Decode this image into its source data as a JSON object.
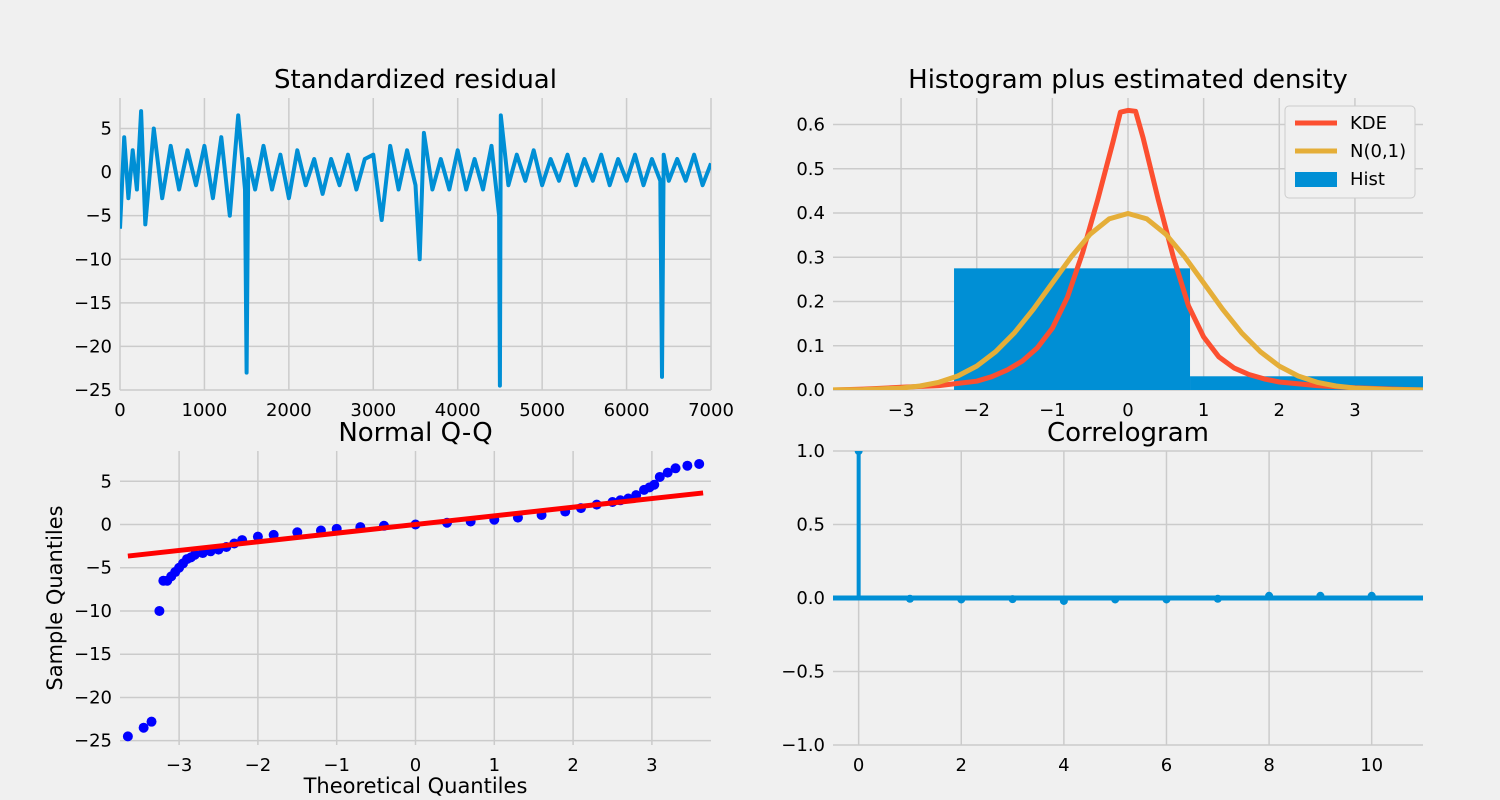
{
  "chart_data": [
    {
      "type": "line",
      "title": "Standardized residual",
      "xlabel": "",
      "ylabel": "",
      "xlim": [
        0,
        7000
      ],
      "ylim": [
        -25,
        8.5
      ],
      "xticks": [
        0,
        1000,
        2000,
        3000,
        4000,
        5000,
        6000,
        7000
      ],
      "xtick_labels": [
        "0",
        "1000",
        "2000",
        "3000",
        "4000",
        "5000",
        "6000",
        "7000"
      ],
      "yticks": [
        5,
        0,
        -5,
        -10,
        -15,
        -20,
        -25
      ],
      "ytick_labels": [
        "5",
        "0",
        "−5",
        "−10",
        "−15",
        "−20",
        "−25"
      ],
      "grid": true,
      "color": "#008fd5",
      "series": [
        {
          "x": [
            0,
            50,
            100,
            150,
            200,
            250,
            300,
            400,
            500,
            600,
            700,
            800,
            900,
            1000,
            1100,
            1200,
            1300,
            1400,
            1480,
            1500,
            1520,
            1600,
            1700,
            1800,
            1900,
            2000,
            2100,
            2200,
            2300,
            2400,
            2500,
            2600,
            2700,
            2800,
            2900,
            3000,
            3100,
            3200,
            3300,
            3400,
            3500,
            3550,
            3600,
            3700,
            3800,
            3900,
            4000,
            4100,
            4200,
            4300,
            4400,
            4490,
            4500,
            4510,
            4600,
            4700,
            4800,
            4900,
            5000,
            5100,
            5200,
            5300,
            5400,
            5500,
            5600,
            5700,
            5800,
            5900,
            6000,
            6100,
            6200,
            6300,
            6400,
            6420,
            6440,
            6500,
            6600,
            6700,
            6800,
            6900,
            7000
          ],
          "values": [
            -6.5,
            4,
            -3,
            2.5,
            -2,
            7,
            -6,
            5,
            -3,
            3,
            -2,
            2.5,
            -1.5,
            3,
            -3,
            4,
            -5,
            6.5,
            -2,
            -23,
            1.5,
            -2,
            3,
            -2,
            2,
            -3,
            2.5,
            -1.5,
            1.5,
            -2.5,
            1.5,
            -1.5,
            2,
            -2,
            1.5,
            2,
            -5.5,
            3,
            -2,
            2.5,
            -1.5,
            -10,
            4.5,
            -2,
            1.5,
            -2,
            2.5,
            -2,
            1.5,
            -2,
            3,
            -5,
            -24.5,
            6.5,
            -1.5,
            2,
            -1,
            2.5,
            -1.5,
            1.5,
            -1,
            2,
            -1.5,
            1.5,
            -1,
            2,
            -1.5,
            1.5,
            -1,
            2,
            -1.5,
            1.5,
            -1,
            -23.5,
            2,
            -1,
            1.5,
            -1,
            2,
            -1.5,
            1
          ]
        }
      ]
    },
    {
      "type": "line",
      "title": "Histogram plus estimated density",
      "xlabel": "",
      "ylabel": "",
      "xlim": [
        -3.9,
        3.9
      ],
      "ylim": [
        0,
        0.66
      ],
      "xticks": [
        -3,
        -2,
        -1,
        0,
        1,
        2,
        3
      ],
      "xtick_labels": [
        "−3",
        "−2",
        "−1",
        "0",
        "1",
        "2",
        "3"
      ],
      "yticks": [
        0.0,
        0.1,
        0.2,
        0.3,
        0.4,
        0.5,
        0.6
      ],
      "ytick_labels": [
        "0.0",
        "0.1",
        "0.2",
        "0.3",
        "0.4",
        "0.5",
        "0.6"
      ],
      "grid": true,
      "legend": "top-right",
      "series": [
        {
          "name": "KDE",
          "color": "#fc4f30",
          "x": [
            -3.9,
            -3.5,
            -3.0,
            -2.5,
            -2.0,
            -1.8,
            -1.6,
            -1.4,
            -1.2,
            -1.0,
            -0.8,
            -0.6,
            -0.4,
            -0.2,
            -0.1,
            0.0,
            0.1,
            0.2,
            0.4,
            0.6,
            0.8,
            1.0,
            1.2,
            1.4,
            1.6,
            1.8,
            2.0,
            2.5,
            3.0,
            3.5,
            3.9
          ],
          "values": [
            0.0,
            0.002,
            0.006,
            0.01,
            0.02,
            0.03,
            0.045,
            0.065,
            0.095,
            0.14,
            0.21,
            0.31,
            0.43,
            0.56,
            0.628,
            0.632,
            0.63,
            0.57,
            0.43,
            0.3,
            0.19,
            0.12,
            0.075,
            0.05,
            0.035,
            0.025,
            0.018,
            0.01,
            0.005,
            0.002,
            0.0
          ]
        },
        {
          "name": "N(0,1)",
          "color": "#e5ae38",
          "x": [
            -3.9,
            -3.5,
            -3.0,
            -2.75,
            -2.5,
            -2.25,
            -2.0,
            -1.75,
            -1.5,
            -1.25,
            -1.0,
            -0.75,
            -0.5,
            -0.25,
            0.0,
            0.25,
            0.5,
            0.75,
            1.0,
            1.25,
            1.5,
            1.75,
            2.0,
            2.25,
            2.5,
            2.75,
            3.0,
            3.5,
            3.9
          ],
          "values": [
            0.0002,
            0.0009,
            0.0044,
            0.0091,
            0.0175,
            0.0317,
            0.054,
            0.0863,
            0.1295,
            0.1826,
            0.242,
            0.3011,
            0.3521,
            0.3867,
            0.3989,
            0.3867,
            0.3521,
            0.3011,
            0.242,
            0.1826,
            0.1295,
            0.0863,
            0.054,
            0.0317,
            0.0175,
            0.0091,
            0.0044,
            0.0009,
            0.0002
          ]
        },
        {
          "name": "Hist",
          "type": "bar",
          "color": "#008fd5",
          "bins": [
            [
              -3.9,
              -2.3,
              0.0
            ],
            [
              -2.3,
              0.82,
              0.275
            ],
            [
              0.82,
              3.9,
              0.031
            ]
          ]
        }
      ]
    },
    {
      "type": "scatter",
      "title": "Normal Q-Q",
      "xlabel": "Theoretical Quantiles",
      "ylabel": "Sample Quantiles",
      "xlim": [
        -3.75,
        3.75
      ],
      "ylim": [
        -25.5,
        8.5
      ],
      "xticks": [
        -3,
        -2,
        -1,
        0,
        1,
        2,
        3
      ],
      "xtick_labels": [
        "−3",
        "−2",
        "−1",
        "0",
        "1",
        "2",
        "3"
      ],
      "yticks": [
        5,
        0,
        -5,
        -10,
        -15,
        -20,
        -25
      ],
      "ytick_labels": [
        "5",
        "0",
        "−5",
        "−10",
        "−15",
        "−20",
        "−25"
      ],
      "grid": true,
      "series": [
        {
          "type": "scatter",
          "color": "#0000ff",
          "x": [
            -3.65,
            -3.45,
            -3.35,
            -3.25,
            -3.2,
            -3.15,
            -3.1,
            -3.05,
            -3.0,
            -2.95,
            -2.9,
            -2.85,
            -2.8,
            -2.7,
            -2.6,
            -2.5,
            -2.4,
            -2.3,
            -2.2,
            -2.0,
            -1.8,
            -1.5,
            -1.2,
            -1.0,
            -0.7,
            -0.4,
            0.0,
            0.4,
            0.7,
            1.0,
            1.3,
            1.6,
            1.9,
            2.1,
            2.3,
            2.5,
            2.6,
            2.7,
            2.8,
            2.9,
            2.97,
            3.03,
            3.1,
            3.2,
            3.3,
            3.45,
            3.6
          ],
          "values": [
            -24.5,
            -23.5,
            -22.8,
            -10,
            -6.5,
            -6.5,
            -6.0,
            -5.5,
            -5.0,
            -4.5,
            -4.0,
            -3.8,
            -3.5,
            -3.3,
            -3.1,
            -2.9,
            -2.6,
            -2.2,
            -1.8,
            -1.4,
            -1.2,
            -0.9,
            -0.7,
            -0.5,
            -0.3,
            -0.15,
            0.0,
            0.2,
            0.35,
            0.55,
            0.8,
            1.1,
            1.5,
            1.9,
            2.3,
            2.6,
            2.8,
            3.0,
            3.4,
            4.0,
            4.3,
            4.6,
            5.5,
            6.0,
            6.5,
            6.8,
            7.0
          ]
        },
        {
          "type": "line",
          "color": "#ff0000",
          "x": [
            -3.65,
            3.65
          ],
          "values": [
            -3.65,
            3.65
          ]
        }
      ]
    },
    {
      "type": "line",
      "title": "Correlogram",
      "xlabel": "",
      "ylabel": "",
      "xlim": [
        -0.5,
        11
      ],
      "ylim": [
        -1.0,
        1.0
      ],
      "xticks": [
        0,
        2,
        4,
        6,
        8,
        10
      ],
      "xtick_labels": [
        "0",
        "2",
        "4",
        "6",
        "8",
        "10"
      ],
      "yticks": [
        1.0,
        0.5,
        0.0,
        -0.5,
        -1.0
      ],
      "ytick_labels": [
        "1.0",
        "0.5",
        "0.0",
        "−0.5",
        "−1.0"
      ],
      "grid": true,
      "color": "#008fd5",
      "series": [
        {
          "lags": [
            0,
            1,
            2,
            3,
            4,
            5,
            6,
            7,
            8,
            9,
            10
          ],
          "values": [
            1.0,
            -0.005,
            -0.01,
            -0.008,
            -0.02,
            -0.01,
            -0.01,
            -0.005,
            0.015,
            0.015,
            0.015
          ]
        }
      ]
    }
  ]
}
